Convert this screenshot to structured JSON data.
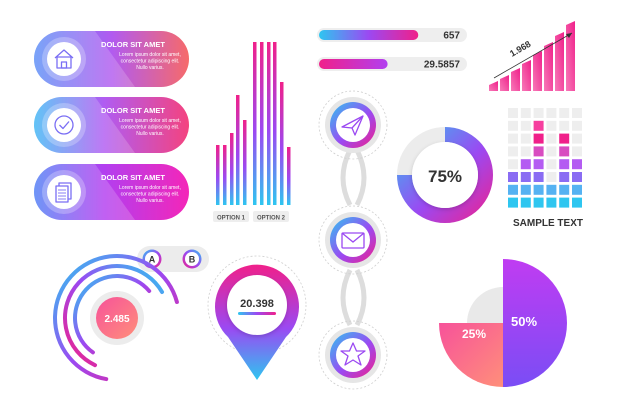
{
  "info_cards": [
    {
      "title": "DOLOR SIT AMET",
      "body": [
        "Lorem ipsum dolor sit amet,",
        "consectetur adipiscing elit.",
        "Nullo varius."
      ],
      "icon": "house-icon"
    },
    {
      "title": "DOLOR SIT AMET",
      "body": [
        "Lorem ipsum dolor sit amet,",
        "consectetur adipiscing elit.",
        "Nullo varius."
      ],
      "icon": "checkmark-icon"
    },
    {
      "title": "DOLOR SIT AMET",
      "body": [
        "Lorem ipsum dolor sit amet,",
        "consectetur adipiscing elit.",
        "Nullo varius."
      ],
      "icon": "document-icon"
    }
  ],
  "bar_groups": {
    "option1": "OPTION 1",
    "option2": "OPTION 2"
  },
  "progress_bars": [
    {
      "label": "657",
      "fraction": 0.68
    },
    {
      "label": "29.5857",
      "fraction": 0.47
    }
  ],
  "rising_chart": {
    "label": "1.968"
  },
  "donut": {
    "label": "75%",
    "value": 0.75
  },
  "heatmap": {
    "label": "SAMPLE TEXT"
  },
  "ab_toggle": {
    "a": "A",
    "b": "B"
  },
  "arcs": {
    "label": "2.485"
  },
  "pin": {
    "label": "20.398"
  },
  "timeline": {
    "icons": [
      "paper-plane-icon",
      "envelope-icon",
      "star-icon"
    ]
  },
  "pie": {
    "small_label": "25%",
    "big_label": "50%"
  },
  "colors": {
    "pink": "#f0208a",
    "purple": "#8f3cf5",
    "blue": "#1fc4f2",
    "coral": "#f5705f",
    "dark": "#333333"
  }
}
